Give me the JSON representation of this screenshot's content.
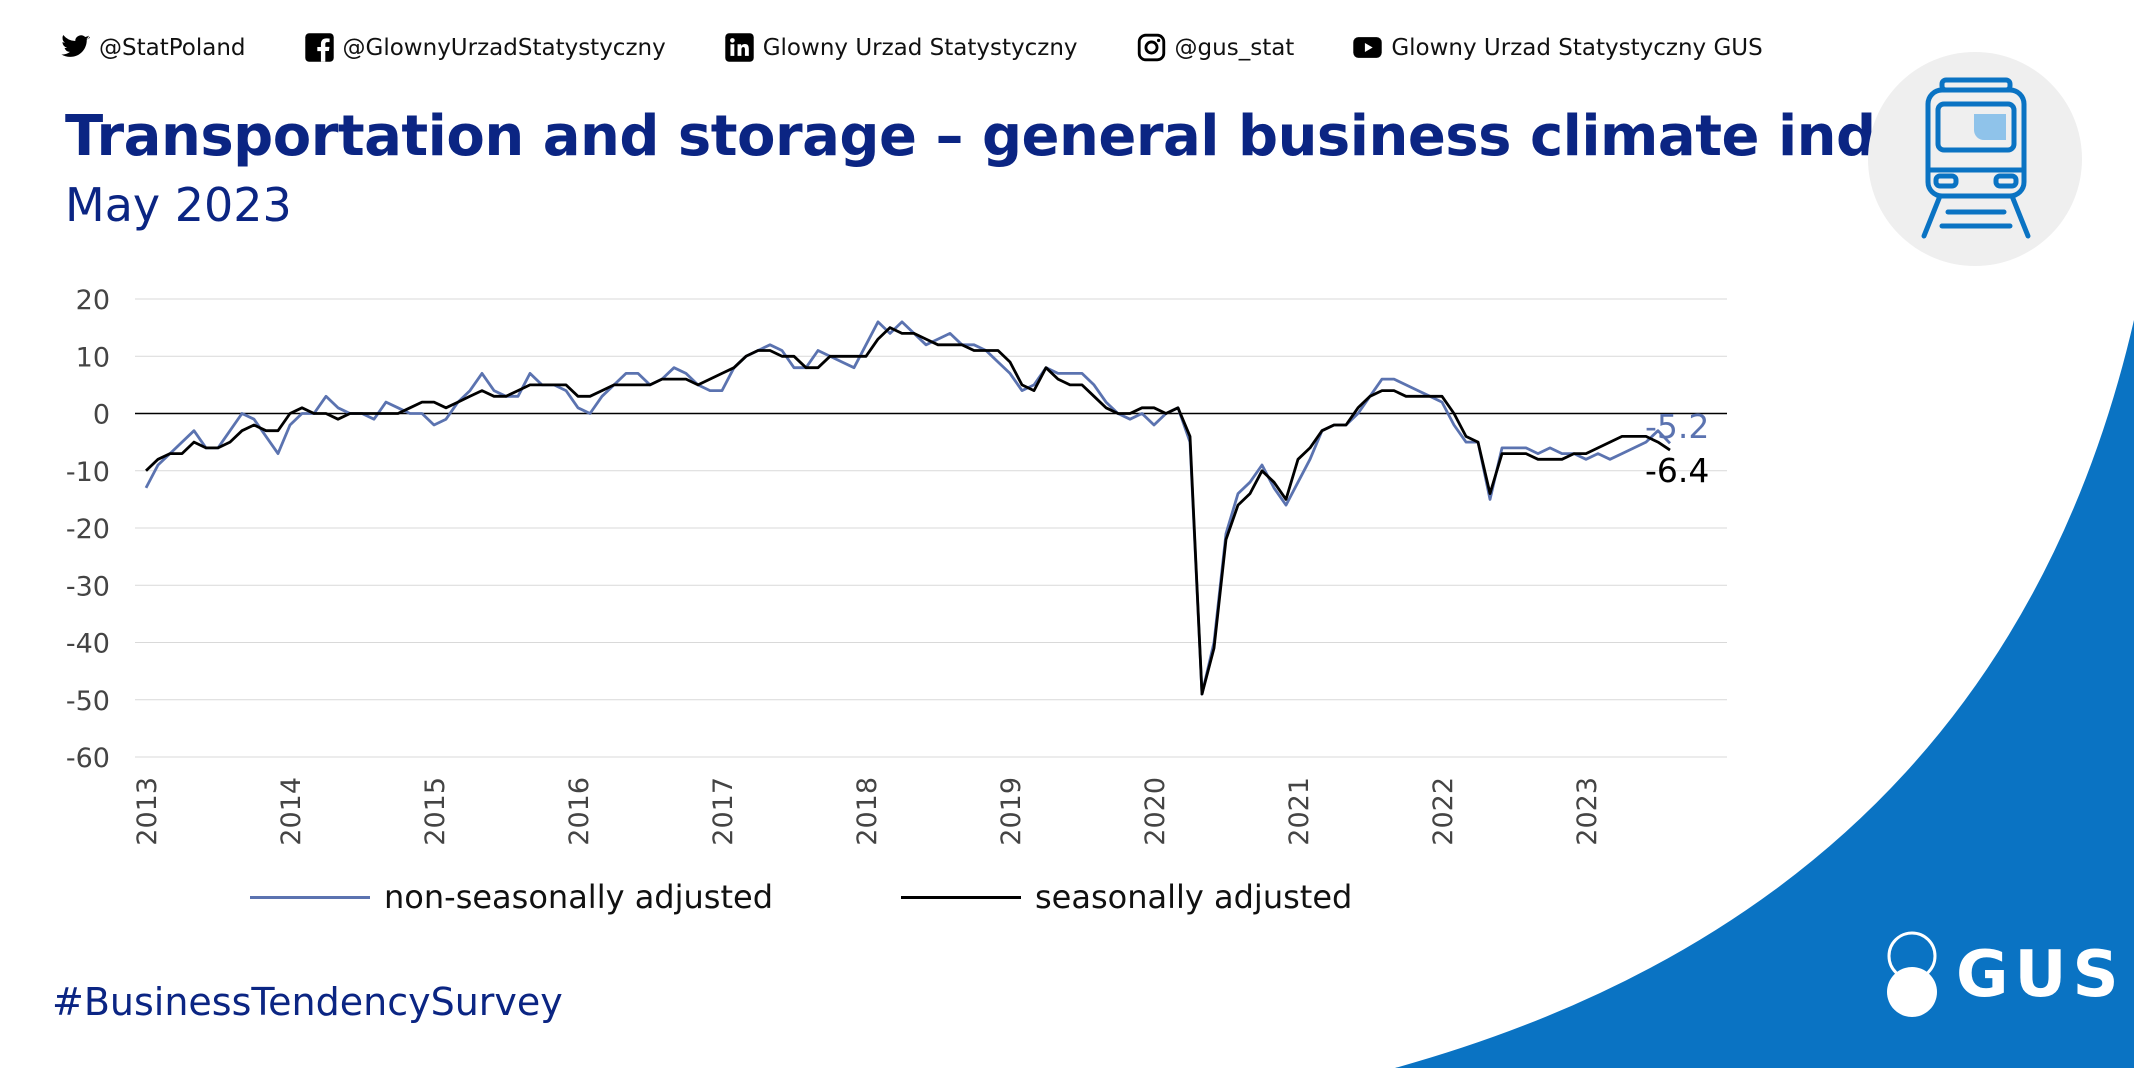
{
  "social": [
    {
      "icon": "twitter-icon",
      "label": "@StatPoland"
    },
    {
      "icon": "facebook-icon",
      "label": "@GlownyUrzadStatystyczny"
    },
    {
      "icon": "linkedin-icon",
      "label": "Glowny Urzad Statystyczny"
    },
    {
      "icon": "instagram-icon",
      "label": "@gus_stat"
    },
    {
      "icon": "youtube-icon",
      "label": "Glowny Urzad Statystyczny GUS"
    }
  ],
  "header": {
    "title": "Transportation and storage – general business climate indicator",
    "subtitle": "May 2023"
  },
  "hashtag": "#BusinessTendencySurvey",
  "brand": {
    "logo_text": "GUS",
    "accent": "#0a73c3",
    "navy": "#0b2583"
  },
  "chart_data": {
    "type": "line",
    "title": "Transportation and storage – general business climate indicator",
    "x_start": "2013-01",
    "x_step": "month",
    "ylim": [
      -60,
      20
    ],
    "yticks": [
      20,
      10,
      0,
      -10,
      -20,
      -30,
      -40,
      -50,
      -60
    ],
    "xtick_labels": [
      "2013",
      "2014",
      "2015",
      "2016",
      "2017",
      "2018",
      "2019",
      "2020",
      "2021",
      "2022",
      "2023"
    ],
    "grid": true,
    "legend_position": "bottom",
    "series": [
      {
        "name": "non-seasonally adjusted",
        "color": "#5b73b0",
        "end_label": "-5.2",
        "values": [
          -13,
          -9,
          -7,
          -5,
          -3,
          -6,
          -6,
          -3,
          0,
          -1,
          -4,
          -7,
          -2,
          0,
          0,
          3,
          1,
          0,
          0,
          -1,
          2,
          1,
          0,
          0,
          -2,
          -1,
          2,
          4,
          7,
          4,
          3,
          3,
          7,
          5,
          5,
          4,
          1,
          0,
          3,
          5,
          7,
          7,
          5,
          6,
          8,
          7,
          5,
          4,
          4,
          8,
          10,
          11,
          12,
          11,
          8,
          8,
          11,
          10,
          9,
          8,
          12,
          16,
          14,
          16,
          14,
          12,
          13,
          14,
          12,
          12,
          11,
          9,
          7,
          4,
          5,
          8,
          7,
          7,
          7,
          5,
          2,
          0,
          -1,
          0,
          -2,
          0,
          1,
          -5,
          -49,
          -40,
          -21,
          -14,
          -12,
          -9,
          -13,
          -16,
          -12,
          -8,
          -3,
          -2,
          -2,
          0,
          3,
          6,
          6,
          5,
          4,
          3,
          2,
          -2,
          -5,
          -5,
          -15,
          -6,
          -6,
          -6,
          -7,
          -6,
          -7,
          -7,
          -8,
          -7,
          -8,
          -7,
          -6,
          -5,
          -3,
          -5.2
        ]
      },
      {
        "name": "seasonally adjusted",
        "color": "#000000",
        "end_label": "-6.4",
        "values": [
          -10,
          -8,
          -7,
          -7,
          -5,
          -6,
          -6,
          -5,
          -3,
          -2,
          -3,
          -3,
          0,
          1,
          0,
          0,
          -1,
          0,
          0,
          0,
          0,
          0,
          1,
          2,
          2,
          1,
          2,
          3,
          4,
          3,
          3,
          4,
          5,
          5,
          5,
          5,
          3,
          3,
          4,
          5,
          5,
          5,
          5,
          6,
          6,
          6,
          5,
          6,
          7,
          8,
          10,
          11,
          11,
          10,
          10,
          8,
          8,
          10,
          10,
          10,
          10,
          13,
          15,
          14,
          14,
          13,
          12,
          12,
          12,
          11,
          11,
          11,
          9,
          5,
          4,
          8,
          6,
          5,
          5,
          3,
          1,
          0,
          0,
          1,
          1,
          0,
          1,
          -4,
          -49,
          -41,
          -22,
          -16,
          -14,
          -10,
          -12,
          -15,
          -8,
          -6,
          -3,
          -2,
          -2,
          1,
          3,
          4,
          4,
          3,
          3,
          3,
          3,
          0,
          -4,
          -5,
          -14,
          -7,
          -7,
          -7,
          -8,
          -8,
          -8,
          -7,
          -7,
          -6,
          -5,
          -4,
          -4,
          -4,
          -5,
          -6.4
        ]
      }
    ]
  }
}
